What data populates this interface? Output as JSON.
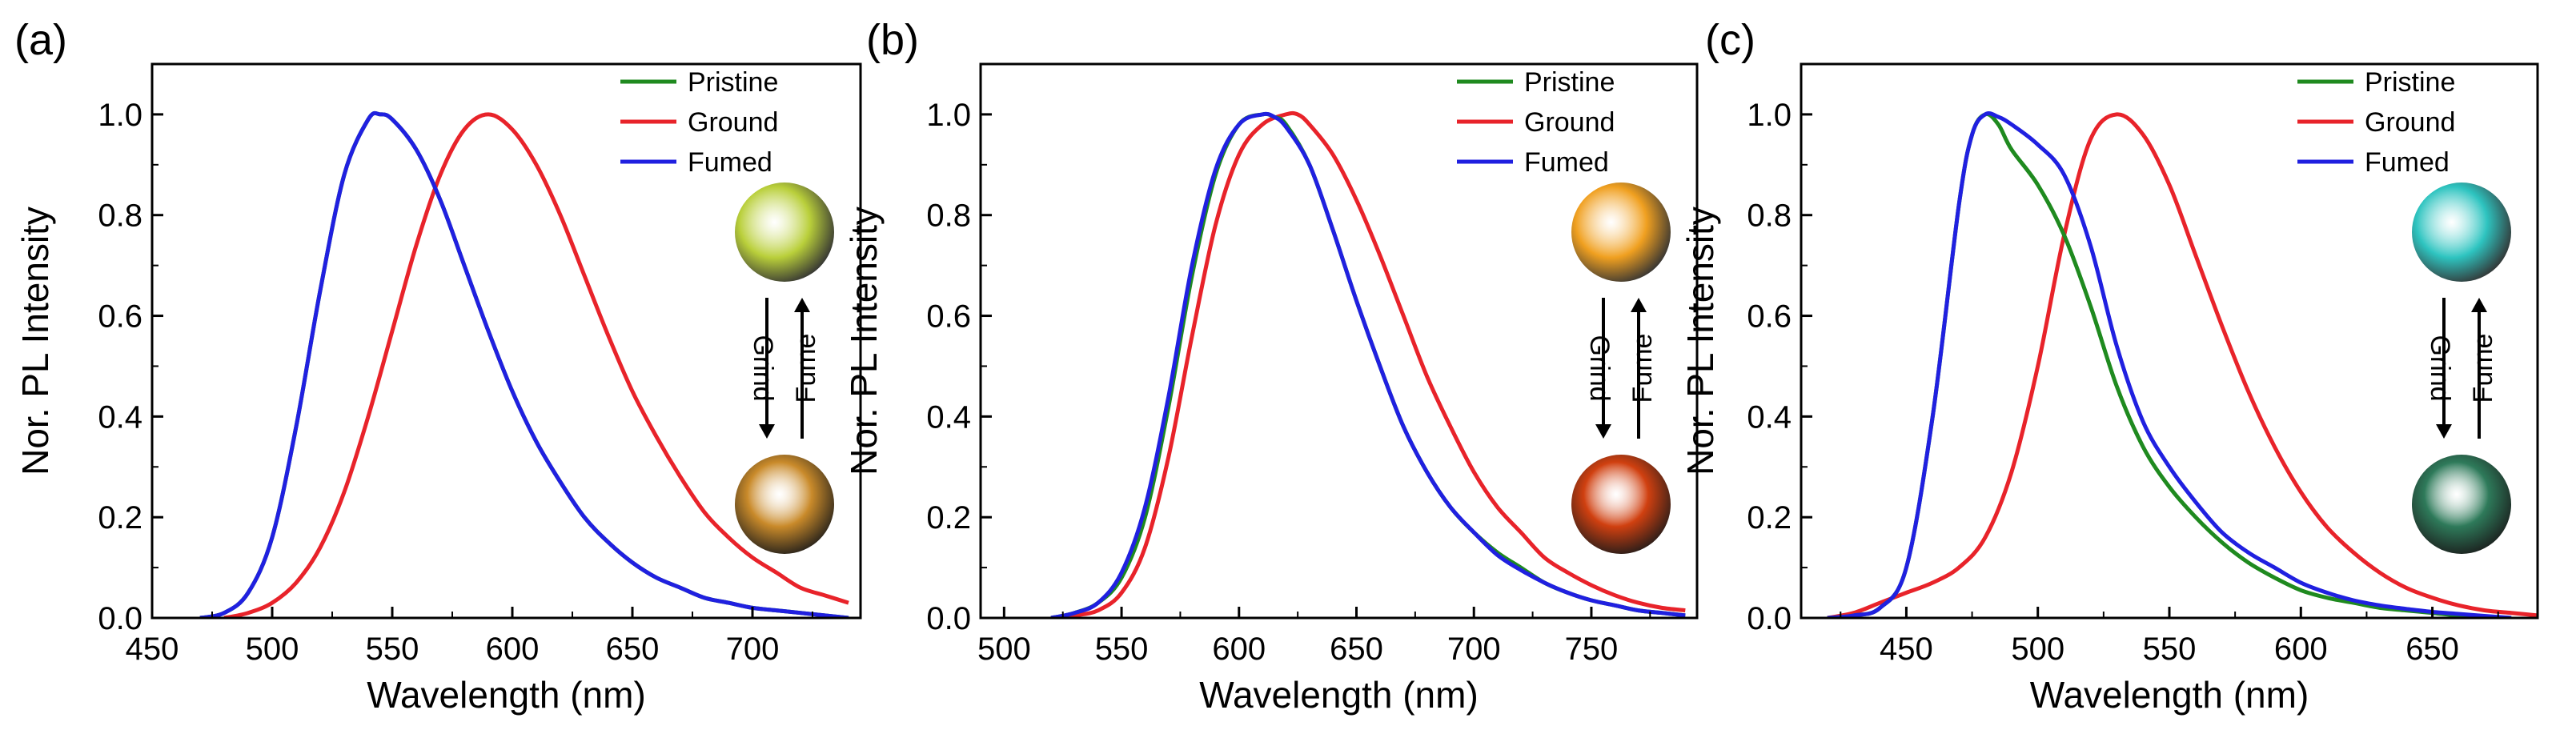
{
  "figure": {
    "panel_labels": [
      "(a)",
      "(b)",
      "(c)"
    ],
    "series_colors": {
      "Pristine": "#1f8a1f",
      "Ground": "#e8232a",
      "Fumed": "#2020e0"
    }
  },
  "chart_data": [
    {
      "type": "line",
      "panel": "(a)",
      "xlabel": "Wavelength (nm)",
      "ylabel": "Nor. PL Intensity",
      "xlim": [
        450,
        745
      ],
      "ylim": [
        0,
        1.1
      ],
      "xticks": [
        450,
        500,
        550,
        600,
        650,
        700
      ],
      "yticks": [
        0.0,
        0.2,
        0.4,
        0.6,
        0.8,
        1.0
      ],
      "legend": [
        "Pristine",
        "Ground",
        "Fumed"
      ],
      "inset": {
        "left_label": "Grind",
        "right_label": "Fume",
        "top_color": "#b9cf3a",
        "bottom_color": "#c98a2a"
      },
      "series": [
        {
          "name": "Pristine",
          "color": "#1f8a1f",
          "x": [
            470,
            480,
            490,
            500,
            510,
            520,
            530,
            540,
            545,
            550,
            560,
            570,
            580,
            590,
            600,
            610,
            620,
            630,
            640,
            650,
            660,
            670,
            680,
            690,
            700,
            710,
            720,
            740
          ],
          "y": [
            0.0,
            0.01,
            0.05,
            0.16,
            0.38,
            0.65,
            0.88,
            0.99,
            1.0,
            0.99,
            0.93,
            0.83,
            0.7,
            0.57,
            0.45,
            0.35,
            0.27,
            0.2,
            0.15,
            0.11,
            0.08,
            0.06,
            0.04,
            0.03,
            0.02,
            0.015,
            0.01,
            0.0
          ]
        },
        {
          "name": "Ground",
          "color": "#e8232a",
          "x": [
            480,
            490,
            500,
            510,
            520,
            530,
            540,
            550,
            560,
            570,
            580,
            590,
            600,
            610,
            620,
            630,
            640,
            650,
            660,
            670,
            680,
            690,
            700,
            710,
            720,
            730,
            740
          ],
          "y": [
            0.0,
            0.01,
            0.03,
            0.07,
            0.14,
            0.25,
            0.4,
            0.57,
            0.74,
            0.88,
            0.97,
            1.0,
            0.97,
            0.9,
            0.8,
            0.68,
            0.56,
            0.45,
            0.36,
            0.28,
            0.21,
            0.16,
            0.12,
            0.09,
            0.06,
            0.045,
            0.03
          ]
        },
        {
          "name": "Fumed",
          "color": "#2020e0",
          "x": [
            470,
            480,
            490,
            500,
            510,
            520,
            530,
            540,
            545,
            550,
            560,
            570,
            580,
            590,
            600,
            610,
            620,
            630,
            640,
            650,
            660,
            670,
            680,
            690,
            700,
            710,
            720,
            740
          ],
          "y": [
            0.0,
            0.01,
            0.05,
            0.16,
            0.38,
            0.65,
            0.88,
            0.99,
            1.0,
            0.99,
            0.93,
            0.83,
            0.7,
            0.57,
            0.45,
            0.35,
            0.27,
            0.2,
            0.15,
            0.11,
            0.08,
            0.06,
            0.04,
            0.03,
            0.02,
            0.015,
            0.01,
            0.0
          ]
        }
      ]
    },
    {
      "type": "line",
      "panel": "(b)",
      "xlabel": "Wavelength (nm)",
      "ylabel": "Nor. PL Intensity",
      "xlim": [
        490,
        795
      ],
      "ylim": [
        0,
        1.1
      ],
      "xticks": [
        500,
        550,
        600,
        650,
        700,
        750
      ],
      "yticks": [
        0.0,
        0.2,
        0.4,
        0.6,
        0.8,
        1.0
      ],
      "legend": [
        "Pristine",
        "Ground",
        "Fumed"
      ],
      "inset": {
        "left_label": "Grind",
        "right_label": "Fume",
        "top_color": "#f0a020",
        "bottom_color": "#d04010"
      },
      "series": [
        {
          "name": "Pristine",
          "color": "#1f8a1f",
          "x": [
            520,
            530,
            540,
            550,
            560,
            570,
            580,
            590,
            600,
            610,
            615,
            620,
            630,
            640,
            650,
            660,
            670,
            680,
            690,
            700,
            710,
            720,
            730,
            740,
            750,
            760,
            770,
            780,
            790
          ],
          "y": [
            0.0,
            0.01,
            0.03,
            0.08,
            0.2,
            0.42,
            0.68,
            0.88,
            0.98,
            1.0,
            0.995,
            0.98,
            0.9,
            0.77,
            0.63,
            0.5,
            0.38,
            0.29,
            0.22,
            0.17,
            0.13,
            0.1,
            0.07,
            0.05,
            0.035,
            0.025,
            0.015,
            0.01,
            0.005
          ]
        },
        {
          "name": "Ground",
          "color": "#e8232a",
          "x": [
            520,
            530,
            540,
            550,
            560,
            570,
            580,
            590,
            600,
            610,
            620,
            625,
            630,
            640,
            650,
            660,
            670,
            680,
            690,
            700,
            710,
            720,
            730,
            740,
            750,
            760,
            770,
            780,
            790
          ],
          "y": [
            0.0,
            0.005,
            0.015,
            0.05,
            0.14,
            0.32,
            0.56,
            0.78,
            0.92,
            0.98,
            1.0,
            1.0,
            0.98,
            0.92,
            0.83,
            0.72,
            0.6,
            0.48,
            0.38,
            0.29,
            0.22,
            0.17,
            0.12,
            0.09,
            0.065,
            0.045,
            0.03,
            0.02,
            0.015
          ]
        },
        {
          "name": "Fumed",
          "color": "#2020e0",
          "x": [
            520,
            530,
            540,
            550,
            560,
            570,
            580,
            590,
            600,
            610,
            615,
            620,
            630,
            640,
            650,
            660,
            670,
            680,
            690,
            700,
            710,
            720,
            730,
            740,
            750,
            760,
            770,
            780,
            790
          ],
          "y": [
            0.0,
            0.01,
            0.03,
            0.09,
            0.22,
            0.44,
            0.7,
            0.89,
            0.98,
            1.0,
            0.995,
            0.975,
            0.9,
            0.77,
            0.63,
            0.5,
            0.38,
            0.29,
            0.22,
            0.17,
            0.125,
            0.095,
            0.07,
            0.05,
            0.035,
            0.025,
            0.015,
            0.01,
            0.005
          ]
        }
      ]
    },
    {
      "type": "line",
      "panel": "(c)",
      "xlabel": "Wavelength (nm)",
      "ylabel": "Nor. PL Intensity",
      "xlim": [
        410,
        690
      ],
      "ylim": [
        0,
        1.1
      ],
      "xticks": [
        450,
        500,
        550,
        600,
        650
      ],
      "yticks": [
        0.0,
        0.2,
        0.4,
        0.6,
        0.8,
        1.0
      ],
      "legend": [
        "Pristine",
        "Ground",
        "Fumed"
      ],
      "inset": {
        "left_label": "Grind",
        "right_label": "Fume",
        "top_color": "#2ec4c0",
        "bottom_color": "#2e7a5a"
      },
      "series": [
        {
          "name": "Pristine",
          "color": "#1f8a1f",
          "x": [
            420,
            430,
            440,
            450,
            460,
            470,
            475,
            480,
            485,
            490,
            500,
            510,
            520,
            530,
            540,
            550,
            560,
            570,
            580,
            590,
            600,
            610,
            620,
            630,
            640,
            650,
            660,
            680
          ],
          "y": [
            0.0,
            0.005,
            0.02,
            0.1,
            0.4,
            0.82,
            0.96,
            1.0,
            0.98,
            0.93,
            0.86,
            0.76,
            0.62,
            0.46,
            0.34,
            0.26,
            0.2,
            0.15,
            0.11,
            0.08,
            0.055,
            0.04,
            0.03,
            0.02,
            0.015,
            0.01,
            0.005,
            0.0
          ]
        },
        {
          "name": "Ground",
          "color": "#e8232a",
          "x": [
            420,
            430,
            440,
            450,
            460,
            470,
            480,
            490,
            500,
            510,
            520,
            530,
            540,
            550,
            560,
            570,
            580,
            590,
            600,
            610,
            620,
            630,
            640,
            650,
            660,
            670,
            680,
            690
          ],
          "y": [
            0.0,
            0.01,
            0.03,
            0.05,
            0.07,
            0.1,
            0.16,
            0.29,
            0.5,
            0.76,
            0.95,
            1.0,
            0.96,
            0.86,
            0.72,
            0.58,
            0.45,
            0.34,
            0.25,
            0.18,
            0.13,
            0.09,
            0.06,
            0.04,
            0.025,
            0.015,
            0.01,
            0.005
          ]
        },
        {
          "name": "Fumed",
          "color": "#2020e0",
          "x": [
            420,
            430,
            440,
            450,
            460,
            470,
            475,
            480,
            485,
            490,
            500,
            510,
            520,
            530,
            540,
            550,
            560,
            570,
            580,
            590,
            600,
            610,
            620,
            630,
            640,
            650,
            660,
            680
          ],
          "y": [
            0.0,
            0.005,
            0.02,
            0.1,
            0.4,
            0.82,
            0.96,
            1.0,
            0.995,
            0.98,
            0.94,
            0.88,
            0.74,
            0.54,
            0.39,
            0.3,
            0.23,
            0.17,
            0.13,
            0.1,
            0.07,
            0.05,
            0.035,
            0.025,
            0.018,
            0.012,
            0.008,
            0.0
          ]
        }
      ]
    }
  ]
}
